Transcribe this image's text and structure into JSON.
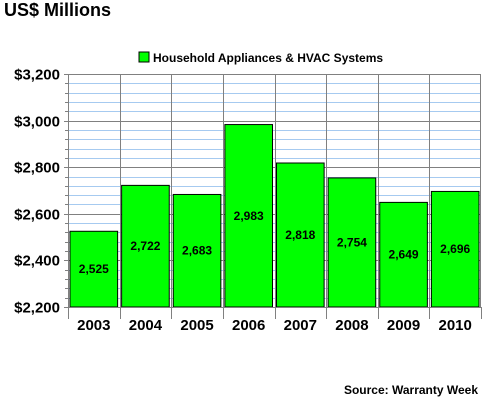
{
  "chart_data": {
    "type": "bar",
    "title": "US$ Millions",
    "source": "Source: Warranty Week",
    "categories": [
      "2003",
      "2004",
      "2005",
      "2006",
      "2007",
      "2008",
      "2009",
      "2010"
    ],
    "series": [
      {
        "name": "Household Appliances & HVAC Systems",
        "values": [
          2525,
          2722,
          2683,
          2983,
          2818,
          2754,
          2649,
          2696
        ],
        "labels": [
          "2,525",
          "2,722",
          "2,683",
          "2,983",
          "2,818",
          "2,754",
          "2,649",
          "2,696"
        ],
        "color": "#00ff00"
      }
    ],
    "ylim": [
      2200,
      3200
    ],
    "yticks": [
      2200,
      2400,
      2600,
      2800,
      3000,
      3200
    ],
    "ytick_labels": [
      "$2,200",
      "$2,400",
      "$2,600",
      "$2,800",
      "$3,000",
      "$3,200"
    ],
    "minor_grid_step": 40,
    "grid": true,
    "legend_position": "top",
    "colors": {
      "bar_fill": "#00ff00",
      "bar_stroke": "#000000",
      "grid_major": "#808080",
      "grid_minor": "#a6caf0",
      "axis": "#808080"
    }
  }
}
